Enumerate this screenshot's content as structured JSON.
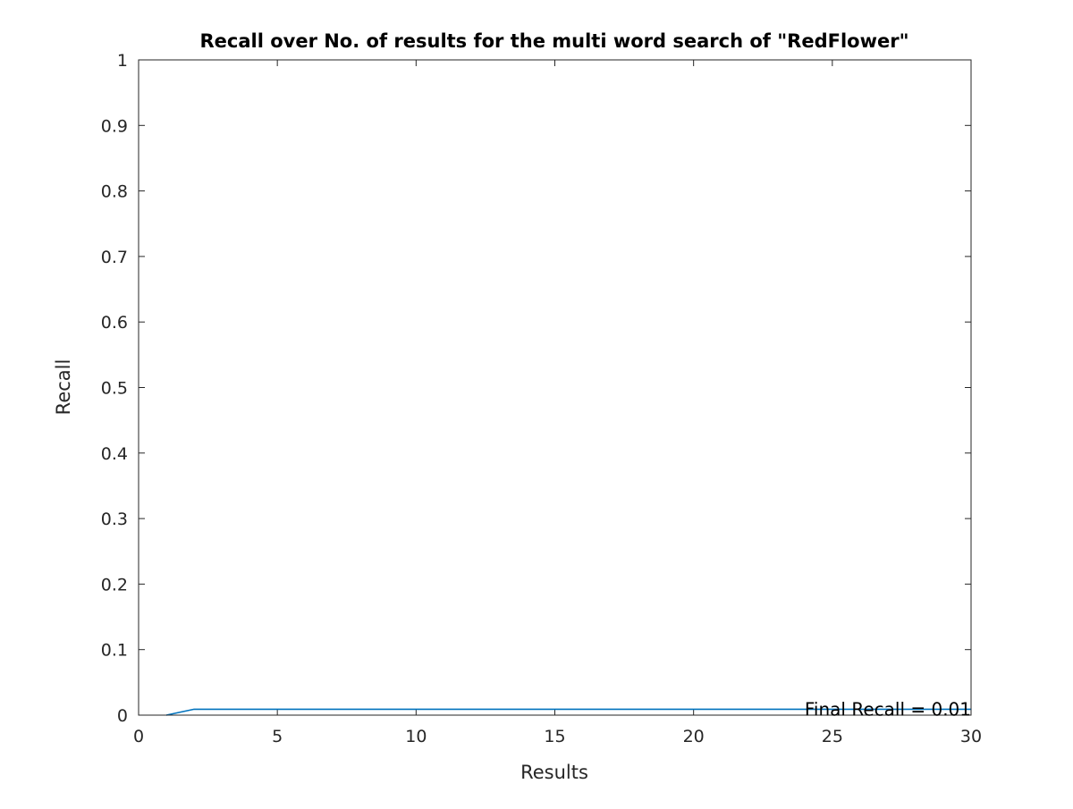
{
  "chart_data": {
    "type": "line",
    "title": "Recall over No. of results for the multi word search of \"RedFlower\"",
    "xlabel": "Results",
    "ylabel": "Recall",
    "xlim": [
      0,
      30
    ],
    "ylim": [
      0,
      1
    ],
    "x_ticks": [
      "0",
      "5",
      "10",
      "15",
      "20",
      "25",
      "30"
    ],
    "y_ticks": [
      "0",
      "0.1",
      "0.2",
      "0.3",
      "0.4",
      "0.5",
      "0.6",
      "0.7",
      "0.8",
      "0.9",
      "1"
    ],
    "grid": false,
    "series": [
      {
        "color": "#0072bd",
        "x": [
          1,
          2,
          3,
          4,
          5,
          6,
          7,
          8,
          9,
          10,
          11,
          12,
          13,
          14,
          15,
          16,
          17,
          18,
          19,
          20,
          21,
          22,
          23,
          24,
          25,
          26,
          27,
          28,
          29,
          30
        ],
        "values": [
          0,
          0.009,
          0.009,
          0.009,
          0.009,
          0.009,
          0.009,
          0.009,
          0.009,
          0.009,
          0.009,
          0.009,
          0.009,
          0.009,
          0.009,
          0.009,
          0.009,
          0.009,
          0.009,
          0.009,
          0.009,
          0.009,
          0.009,
          0.009,
          0.009,
          0.009,
          0.009,
          0.009,
          0.009,
          0.009
        ]
      }
    ],
    "annotations": [
      {
        "text": "Final Recall = 0.01",
        "x": 30,
        "y": 0.009
      }
    ]
  }
}
